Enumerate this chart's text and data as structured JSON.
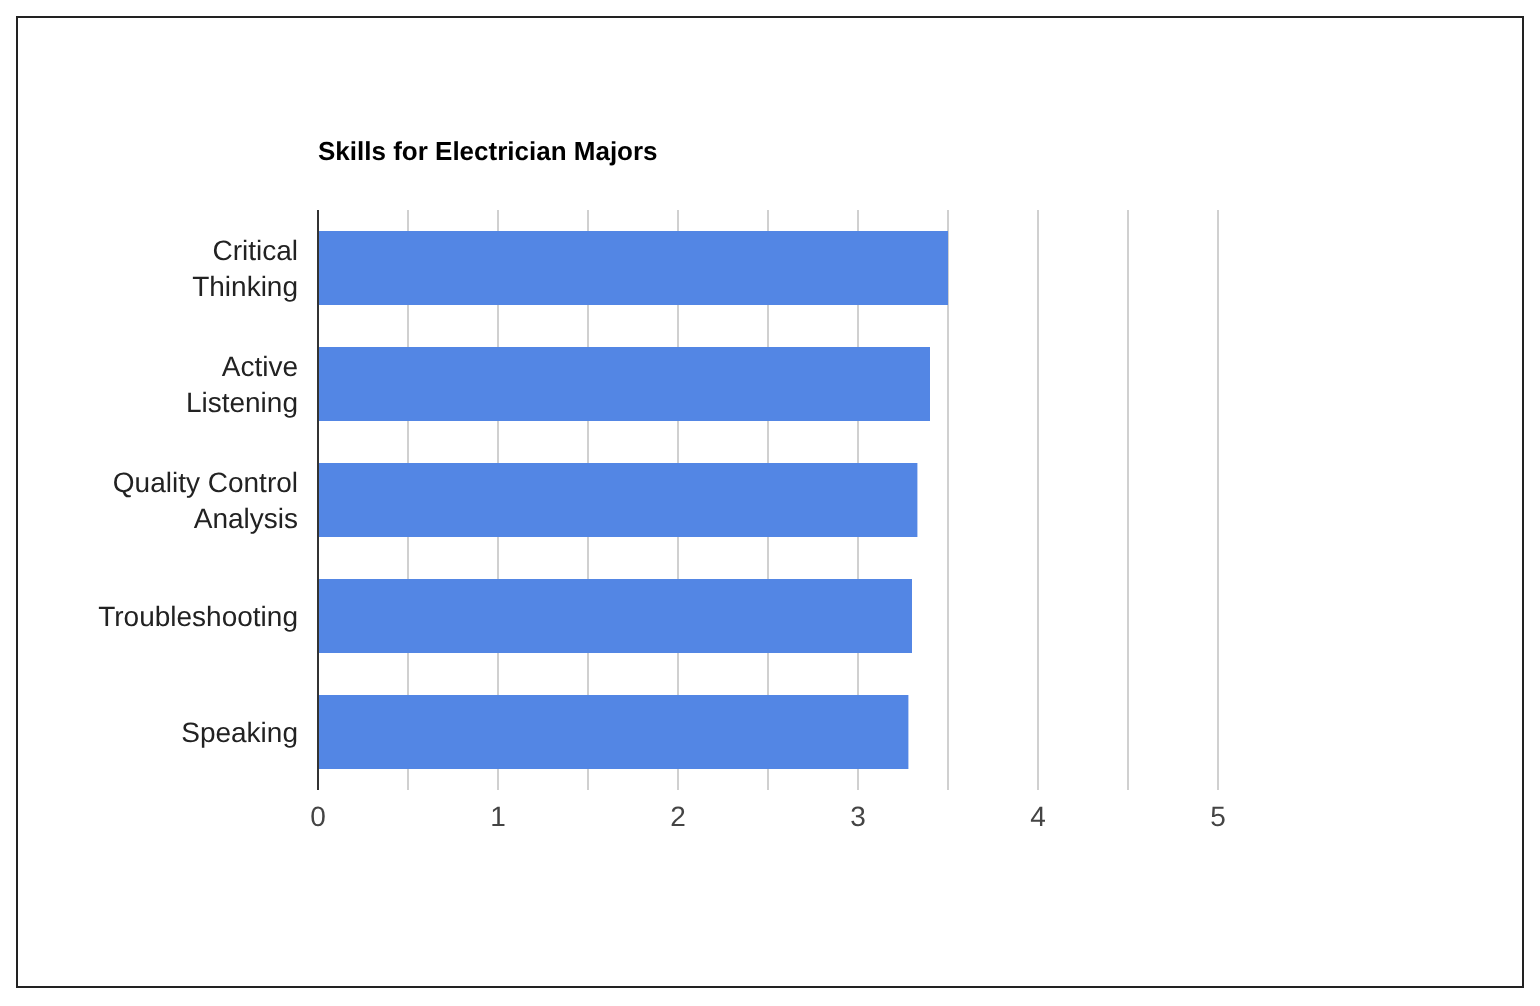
{
  "chart_data": {
    "type": "bar",
    "orientation": "horizontal",
    "title": "Skills for Electrician Majors",
    "categories": [
      "Critical Thinking",
      "Active Listening",
      "Quality Control Analysis",
      "Troubleshooting",
      "Speaking"
    ],
    "values": [
      3.5,
      3.4,
      3.33,
      3.3,
      3.28
    ],
    "color": "#5386e4",
    "xlim": [
      0,
      5
    ],
    "xticks": [
      0,
      {
        "value": 0.5,
        "label": null
      },
      1,
      {
        "value": 1.5,
        "label": null
      },
      2,
      {
        "value": 2.5,
        "label": null
      },
      3,
      {
        "value": 3.5,
        "label": null
      },
      4,
      {
        "value": 4.5,
        "label": null
      },
      5
    ],
    "grid": "x",
    "legend": false
  }
}
